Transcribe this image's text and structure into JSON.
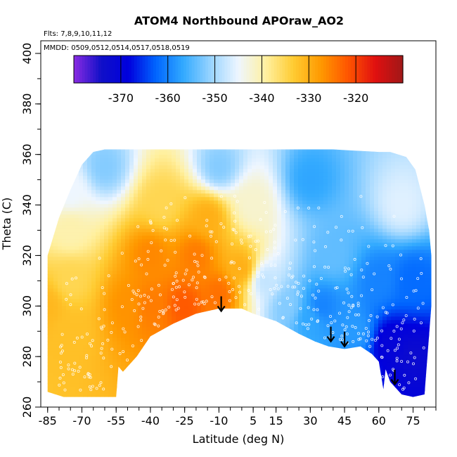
{
  "chart_data": {
    "type": "heatmap",
    "title": "ATOM4 Northbound APOraw_AO2",
    "annotations": {
      "flights": "Flts: 7,8,9,10,11,12",
      "dates": "MMDD: 0509,0512,0514,0517,0518,0519"
    },
    "xlabel": "Latitude (deg N)",
    "ylabel": "Theta (C)",
    "xlim": [
      -88,
      85
    ],
    "ylim": [
      260,
      405
    ],
    "x_ticks": [
      -85,
      -70,
      -55,
      -40,
      -25,
      -10,
      5,
      15,
      30,
      45,
      60,
      75
    ],
    "x_tick_labels": [
      "-85",
      "-70",
      "-55",
      "-40",
      "-25",
      "-10",
      "5",
      "15",
      "30",
      "45",
      "60",
      "75"
    ],
    "y_ticks": [
      260,
      280,
      300,
      320,
      340,
      360,
      380,
      400
    ],
    "y_tick_labels": [
      "260",
      "280",
      "300",
      "320",
      "340",
      "360",
      "380",
      "400"
    ],
    "colorbar": {
      "range": [
        -380,
        -310
      ],
      "ticks": [
        -370,
        -360,
        -350,
        -340,
        -330,
        -320
      ],
      "tick_labels": [
        "-370",
        "-360",
        "-350",
        "-340",
        "-330",
        "-320"
      ],
      "colors": [
        "#8a2be2",
        "#1010c8",
        "#0000dd",
        "#0066ff",
        "#33aaff",
        "#99d4ff",
        "#eef6ff",
        "#fff0a0",
        "#ffcc33",
        "#ff9900",
        "#ff5500",
        "#e01010",
        "#a01818"
      ]
    },
    "surface_theta": [
      [
        -78,
        264
      ],
      [
        -55,
        264
      ],
      [
        -54,
        276
      ],
      [
        -52,
        274
      ],
      [
        -46,
        280
      ],
      [
        -40,
        288
      ],
      [
        -30,
        293
      ],
      [
        -20,
        297
      ],
      [
        -10,
        299
      ],
      [
        0,
        299
      ],
      [
        5,
        297
      ],
      [
        15,
        294
      ],
      [
        25,
        289
      ],
      [
        32,
        286
      ],
      [
        38,
        284
      ],
      [
        45,
        283
      ],
      [
        52,
        284
      ],
      [
        57,
        281
      ],
      [
        60,
        278
      ],
      [
        62,
        267
      ],
      [
        63,
        275
      ],
      [
        65,
        270
      ],
      [
        67,
        268
      ],
      [
        70,
        265
      ],
      [
        75,
        264
      ],
      [
        80,
        265
      ]
    ],
    "upper_boundary": [
      [
        -85,
        320
      ],
      [
        -80,
        335
      ],
      [
        -75,
        346
      ],
      [
        -70,
        356
      ],
      [
        -65,
        361
      ],
      [
        -60,
        362
      ],
      [
        -40,
        362
      ],
      [
        -20,
        362
      ],
      [
        0,
        362
      ],
      [
        20,
        362
      ],
      [
        40,
        362
      ],
      [
        60,
        361
      ],
      [
        65,
        361
      ],
      [
        72,
        359
      ],
      [
        76,
        354
      ],
      [
        80,
        340
      ],
      [
        82,
        330
      ],
      [
        83,
        320
      ],
      [
        83,
        300
      ]
    ],
    "value_field": [
      {
        "lat": -85,
        "theta": 300,
        "value": -331
      },
      {
        "lat": -75,
        "theta": 290,
        "value": -332
      },
      {
        "lat": -75,
        "theta": 310,
        "value": -335
      },
      {
        "lat": -75,
        "theta": 330,
        "value": -340
      },
      {
        "lat": -75,
        "theta": 345,
        "value": -345
      },
      {
        "lat": -60,
        "theta": 355,
        "value": -352
      },
      {
        "lat": -50,
        "theta": 300,
        "value": -327
      },
      {
        "lat": -40,
        "theta": 300,
        "value": -325
      },
      {
        "lat": -40,
        "theta": 320,
        "value": -326
      },
      {
        "lat": -35,
        "theta": 340,
        "value": -335
      },
      {
        "lat": -25,
        "theta": 300,
        "value": -322
      },
      {
        "lat": -20,
        "theta": 320,
        "value": -325
      },
      {
        "lat": -15,
        "theta": 335,
        "value": -330
      },
      {
        "lat": -10,
        "theta": 305,
        "value": -324
      },
      {
        "lat": 0,
        "theta": 315,
        "value": -330
      },
      {
        "lat": 5,
        "theta": 340,
        "value": -342
      },
      {
        "lat": 10,
        "theta": 310,
        "value": -348
      },
      {
        "lat": 20,
        "theta": 300,
        "value": -352
      },
      {
        "lat": 30,
        "theta": 295,
        "value": -357
      },
      {
        "lat": 35,
        "theta": 300,
        "value": -360
      },
      {
        "lat": 40,
        "theta": 320,
        "value": -354
      },
      {
        "lat": 50,
        "theta": 290,
        "value": -358
      },
      {
        "lat": 60,
        "theta": 310,
        "value": -360
      },
      {
        "lat": 65,
        "theta": 285,
        "value": -370
      },
      {
        "lat": 75,
        "theta": 280,
        "value": -372
      },
      {
        "lat": 75,
        "theta": 310,
        "value": -362
      },
      {
        "lat": 70,
        "theta": 340,
        "value": -346
      },
      {
        "lat": 30,
        "theta": 350,
        "value": -357
      },
      {
        "lat": -10,
        "theta": 355,
        "value": -352
      }
    ],
    "arrows": [
      {
        "lat": -9,
        "theta": 298
      },
      {
        "lat": 39,
        "theta": 286
      },
      {
        "lat": 45,
        "theta": 284
      },
      {
        "lat": 67,
        "theta": 269
      }
    ]
  }
}
